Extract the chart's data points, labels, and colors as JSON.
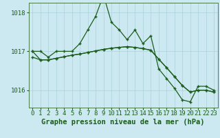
{
  "x": [
    0,
    1,
    2,
    3,
    4,
    5,
    6,
    7,
    8,
    9,
    10,
    11,
    12,
    13,
    14,
    15,
    16,
    17,
    18,
    19,
    20,
    21,
    22,
    23
  ],
  "line_main": [
    1017.0,
    1017.0,
    1016.85,
    1017.0,
    1017.0,
    1017.0,
    1017.2,
    1017.55,
    1017.9,
    1018.45,
    1017.75,
    1017.55,
    1017.3,
    1017.55,
    1017.2,
    1017.4,
    1016.55,
    1016.3,
    1016.05,
    1015.75,
    1015.7,
    1016.1,
    1016.1,
    1016.0
  ],
  "line_low1": [
    1016.85,
    1016.78,
    1016.78,
    1016.82,
    1016.86,
    1016.9,
    1016.93,
    1016.97,
    1017.01,
    1017.05,
    1017.08,
    1017.1,
    1017.12,
    1017.1,
    1017.07,
    1017.03,
    1016.8,
    1016.58,
    1016.35,
    1016.12,
    1015.95,
    1016.0,
    1016.0,
    1015.95
  ],
  "line_low2": [
    1017.0,
    1016.78,
    1016.78,
    1016.82,
    1016.86,
    1016.9,
    1016.93,
    1016.97,
    1017.01,
    1017.05,
    1017.08,
    1017.1,
    1017.12,
    1017.1,
    1017.07,
    1017.03,
    1016.8,
    1016.58,
    1016.35,
    1016.12,
    1015.95,
    1016.0,
    1016.0,
    1015.95
  ],
  "line_color": "#1a5c1a",
  "bg_color": "#cce8f0",
  "grid_color": "#aad0dc",
  "ylabel_ticks": [
    1016,
    1017,
    1018
  ],
  "xlabel": "Graphe pression niveau de la mer (hPa)",
  "ylim": [
    1015.55,
    1018.25
  ],
  "xlim": [
    -0.5,
    23.5
  ],
  "xlabel_fontsize": 7.5,
  "tick_fontsize": 6.5
}
